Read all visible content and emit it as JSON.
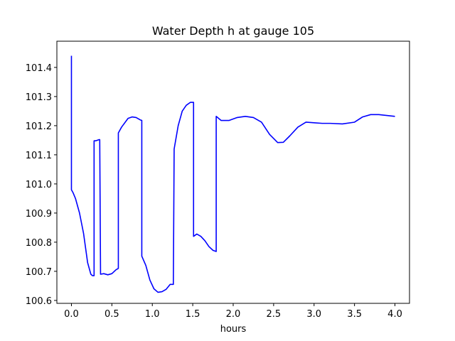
{
  "chart_data": {
    "type": "line",
    "title": "Water Depth h at gauge 105",
    "xlabel": "hours",
    "ylabel": "",
    "xlim": [
      -0.18,
      4.18
    ],
    "ylim": [
      100.59,
      101.49
    ],
    "xticks": [
      0.0,
      0.5,
      1.0,
      1.5,
      2.0,
      2.5,
      3.0,
      3.5,
      4.0
    ],
    "xtick_labels": [
      "0.0",
      "0.5",
      "1.0",
      "1.5",
      "2.0",
      "2.5",
      "3.0",
      "3.5",
      "4.0"
    ],
    "yticks": [
      100.6,
      100.7,
      100.8,
      100.9,
      101.0,
      101.1,
      101.2,
      101.3,
      101.4
    ],
    "ytick_labels": [
      "100.6",
      "100.7",
      "100.8",
      "100.9",
      "101.0",
      "101.1",
      "101.2",
      "101.3",
      "101.4"
    ],
    "grid": false,
    "series": [
      {
        "color": "#0000ff",
        "x": [
          0.0,
          0.0,
          0.02,
          0.05,
          0.1,
          0.15,
          0.2,
          0.24,
          0.26,
          0.28,
          0.28,
          0.3,
          0.34,
          0.35,
          0.36,
          0.4,
          0.45,
          0.5,
          0.55,
          0.58,
          0.58,
          0.62,
          0.7,
          0.75,
          0.8,
          0.85,
          0.87,
          0.87,
          0.92,
          0.97,
          1.02,
          1.07,
          1.12,
          1.17,
          1.22,
          1.26,
          1.27,
          1.27,
          1.32,
          1.37,
          1.42,
          1.47,
          1.51,
          1.51,
          1.55,
          1.6,
          1.65,
          1.7,
          1.75,
          1.79,
          1.79,
          1.85,
          1.95,
          2.05,
          2.15,
          2.25,
          2.35,
          2.45,
          2.55,
          2.62,
          2.7,
          2.8,
          2.9,
          3.0,
          3.1,
          3.2,
          3.35,
          3.5,
          3.6,
          3.7,
          3.8,
          3.9,
          4.0
        ],
        "y": [
          101.44,
          100.98,
          100.97,
          100.95,
          100.9,
          100.83,
          100.73,
          100.69,
          100.685,
          100.685,
          101.148,
          101.148,
          101.152,
          101.152,
          100.69,
          100.692,
          100.688,
          100.692,
          100.705,
          100.71,
          101.175,
          101.195,
          101.225,
          101.23,
          101.228,
          101.22,
          101.218,
          100.752,
          100.72,
          100.67,
          100.64,
          100.628,
          100.63,
          100.638,
          100.655,
          100.655,
          101.12,
          101.12,
          101.2,
          101.25,
          101.27,
          101.28,
          101.28,
          100.82,
          100.828,
          100.82,
          100.805,
          100.785,
          100.772,
          100.768,
          101.232,
          101.218,
          101.218,
          101.228,
          101.232,
          101.228,
          101.212,
          101.17,
          101.142,
          101.143,
          101.165,
          101.195,
          101.212,
          101.21,
          101.208,
          101.208,
          101.206,
          101.212,
          101.23,
          101.238,
          101.238,
          101.235,
          101.232
        ]
      }
    ]
  }
}
